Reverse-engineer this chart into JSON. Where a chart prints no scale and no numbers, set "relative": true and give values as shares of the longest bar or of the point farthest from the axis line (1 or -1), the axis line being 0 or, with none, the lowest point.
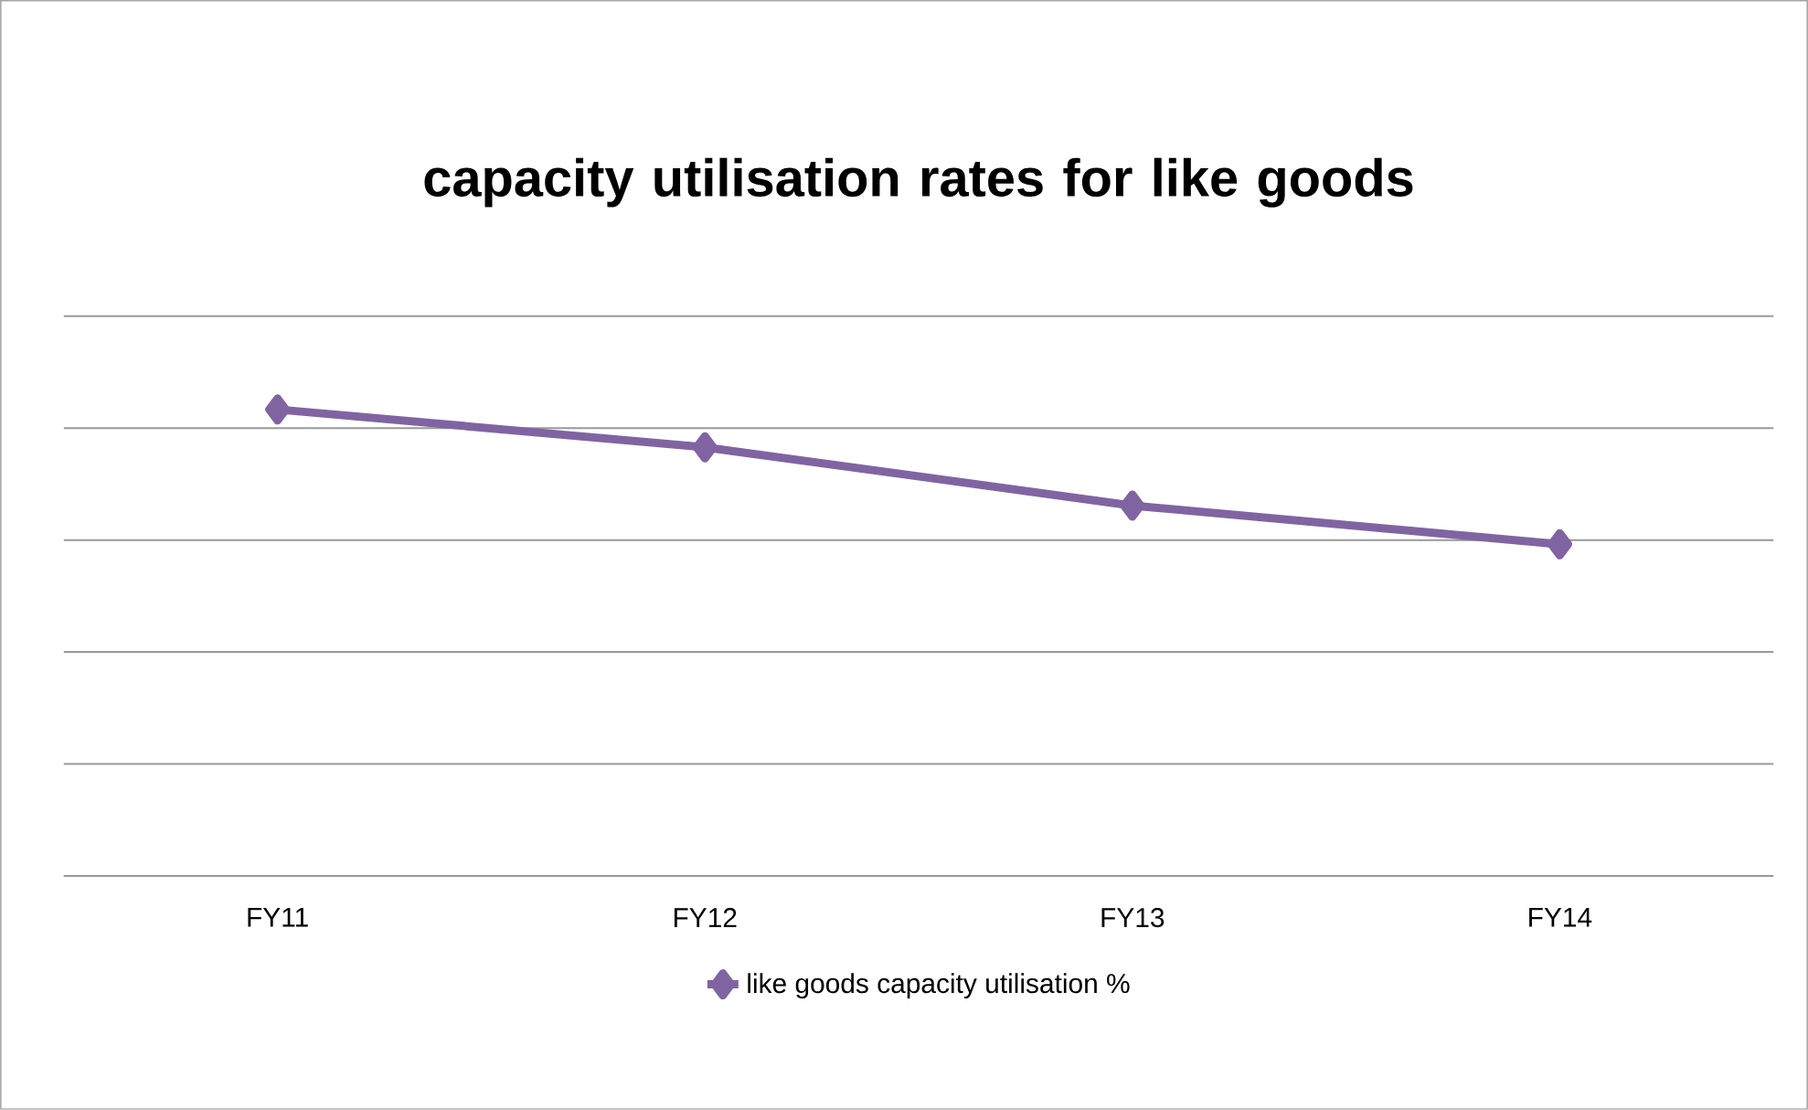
{
  "chart_data": {
    "type": "line",
    "title": "capacity utilisation rates for like goods",
    "categories": [
      "FY11",
      "FY12",
      "FY13",
      "FY14"
    ],
    "series": [
      {
        "name": "like goods capacity utilisation %",
        "color": "#8064a2",
        "values": [
          1,
          0.919,
          0.794,
          0.711
        ]
      }
    ],
    "relative": true,
    "grid": "y",
    "legend": "bottom",
    "marker": "diamond",
    "line_style": "solid"
  }
}
